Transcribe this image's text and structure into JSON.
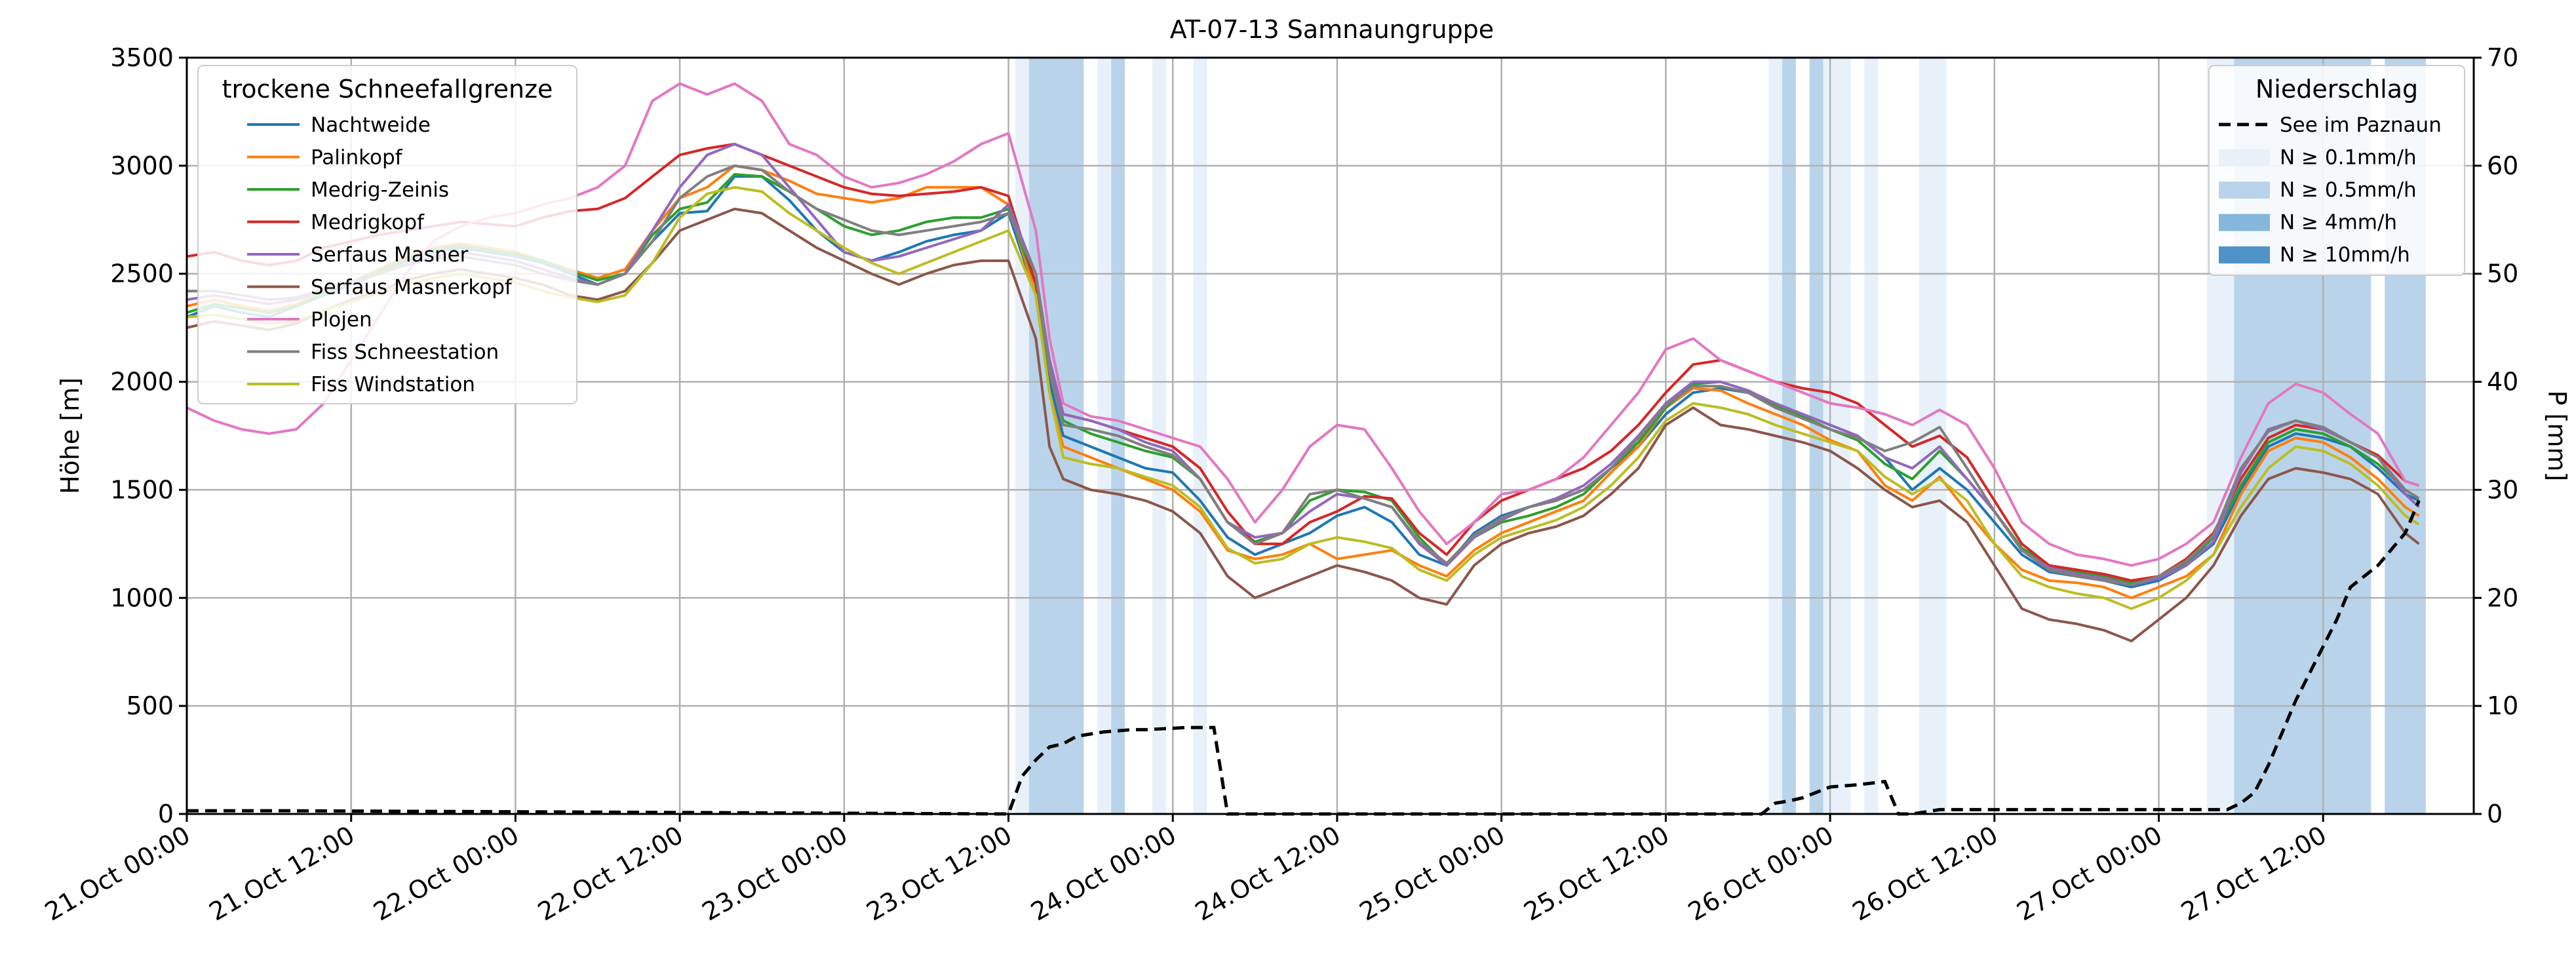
{
  "chart_data": {
    "type": "line",
    "title": "AT-07-13 Samnaungruppe",
    "xlabel": "",
    "ylabel": "Höhe [m]",
    "ylabel_right": "P [mm]",
    "ylim": [
      0,
      3500
    ],
    "ylim_right": [
      0,
      70
    ],
    "xlim": [
      "21.Oct 00:00",
      "27.Oct 23:00"
    ],
    "x_tick_labels": [
      "21.Oct 00:00",
      "21.Oct 12:00",
      "22.Oct 00:00",
      "22.Oct 12:00",
      "23.Oct 00:00",
      "23.Oct 12:00",
      "24.Oct 00:00",
      "24.Oct 12:00",
      "25.Oct 00:00",
      "25.Oct 12:00",
      "26.Oct 00:00",
      "26.Oct 12:00",
      "27.Oct 00:00",
      "27.Oct 12:00"
    ],
    "y_ticks": [
      0,
      500,
      1000,
      1500,
      2000,
      2500,
      3000,
      3500
    ],
    "y_ticks_right": [
      0,
      10,
      20,
      30,
      40,
      50,
      60,
      70
    ],
    "grid": true,
    "legend_left": {
      "title": "trockene Schneefallgrenze",
      "placement": "top-left"
    },
    "legend_right": {
      "title": "Niederschlag",
      "placement": "top-right",
      "entries": [
        {
          "label": "See im Paznaun",
          "style": "dashed",
          "color": "#000000"
        },
        {
          "label": "N ≥ 0.1mm/h",
          "color": "#e8f1fa"
        },
        {
          "label": "N ≥ 0.5mm/h",
          "color": "#b9d4ea"
        },
        {
          "label": "N ≥ 4mm/h",
          "color": "#85b6db"
        },
        {
          "label": "N ≥ 10mm/h",
          "color": "#4e93c8"
        }
      ]
    },
    "precip_bands": [
      {
        "start": 60.5,
        "end": 61.5,
        "level": 1
      },
      {
        "start": 61.5,
        "end": 65.5,
        "level": 2
      },
      {
        "start": 66.5,
        "end": 67.5,
        "level": 1
      },
      {
        "start": 67.5,
        "end": 68.5,
        "level": 2
      },
      {
        "start": 70.5,
        "end": 71.5,
        "level": 1
      },
      {
        "start": 73.5,
        "end": 74.5,
        "level": 1
      },
      {
        "start": 115.5,
        "end": 116.5,
        "level": 1
      },
      {
        "start": 116.5,
        "end": 117.5,
        "level": 2
      },
      {
        "start": 118.5,
        "end": 119.5,
        "level": 2
      },
      {
        "start": 119.5,
        "end": 121.5,
        "level": 1
      },
      {
        "start": 122.5,
        "end": 123.5,
        "level": 1
      },
      {
        "start": 126.5,
        "end": 128.5,
        "level": 1
      },
      {
        "start": 147.5,
        "end": 149.5,
        "level": 1
      },
      {
        "start": 149.5,
        "end": 159.5,
        "level": 2
      },
      {
        "start": 160.5,
        "end": 163.5,
        "level": 2
      }
    ],
    "precip_series": {
      "name": "See im Paznaun",
      "x": [
        0,
        7,
        60,
        61,
        62,
        63,
        64,
        65,
        66,
        67,
        68,
        69,
        70,
        73,
        75,
        76,
        77,
        115,
        116,
        117,
        118,
        119,
        120,
        122,
        124,
        125,
        126,
        128,
        132,
        149,
        150,
        151,
        152,
        153,
        154,
        155,
        156,
        157,
        158,
        159,
        160,
        161,
        162,
        163
      ],
      "values": [
        0.3,
        0.3,
        0,
        3.5,
        5,
        6.2,
        6.5,
        7.2,
        7.4,
        7.6,
        7.7,
        7.8,
        7.8,
        8,
        8,
        0,
        0,
        0,
        1,
        1.2,
        1.5,
        2,
        2.5,
        2.7,
        3,
        0,
        0,
        0.4,
        0.4,
        0.4,
        1,
        2,
        4.5,
        7.5,
        10.5,
        13,
        15.5,
        18,
        21,
        22,
        23,
        24.5,
        26,
        29
      ]
    },
    "x": [
      0,
      2,
      4,
      6,
      8,
      10,
      12,
      14,
      16,
      18,
      20,
      22,
      24,
      26,
      28,
      30,
      32,
      34,
      36,
      38,
      40,
      42,
      44,
      46,
      48,
      50,
      52,
      54,
      56,
      58,
      60,
      62,
      63,
      64,
      66,
      68,
      70,
      72,
      74,
      76,
      78,
      80,
      82,
      84,
      86,
      88,
      90,
      92,
      94,
      96,
      98,
      100,
      102,
      104,
      106,
      108,
      110,
      112,
      114,
      116,
      118,
      120,
      122,
      124,
      126,
      128,
      130,
      132,
      134,
      136,
      138,
      140,
      142,
      144,
      146,
      148,
      150,
      152,
      154,
      156,
      158,
      160,
      162,
      163
    ],
    "series": [
      {
        "name": "Nachtweide",
        "color": "#1f77b4",
        "values": [
          2300,
          2350,
          2320,
          2300,
          2350,
          2400,
          2450,
          2500,
          2560,
          2600,
          2620,
          2600,
          2580,
          2550,
          2500,
          2450,
          2500,
          2650,
          2780,
          2790,
          2950,
          2950,
          2840,
          2700,
          2600,
          2560,
          2600,
          2650,
          2680,
          2700,
          2780,
          2400,
          2000,
          1750,
          1700,
          1650,
          1600,
          1580,
          1450,
          1280,
          1200,
          1250,
          1300,
          1380,
          1420,
          1350,
          1200,
          1150,
          1300,
          1380,
          1420,
          1450,
          1500,
          1600,
          1700,
          1850,
          1950,
          1970,
          1950,
          1900,
          1850,
          1800,
          1750,
          1650,
          1500,
          1600,
          1500,
          1350,
          1200,
          1120,
          1100,
          1080,
          1050,
          1080,
          1150,
          1250,
          1500,
          1700,
          1760,
          1740,
          1700,
          1600,
          1480,
          1450
        ]
      },
      {
        "name": "Palinkopf",
        "color": "#ff7f0e",
        "values": [
          2350,
          2380,
          2350,
          2330,
          2360,
          2420,
          2460,
          2520,
          2580,
          2620,
          2640,
          2620,
          2600,
          2560,
          2520,
          2480,
          2520,
          2700,
          2850,
          2900,
          3000,
          2980,
          2930,
          2870,
          2850,
          2830,
          2850,
          2900,
          2900,
          2900,
          2820,
          2400,
          1950,
          1700,
          1650,
          1600,
          1550,
          1500,
          1400,
          1220,
          1180,
          1200,
          1250,
          1180,
          1200,
          1220,
          1150,
          1100,
          1220,
          1300,
          1350,
          1400,
          1450,
          1580,
          1700,
          1880,
          1970,
          1960,
          1900,
          1850,
          1800,
          1730,
          1680,
          1520,
          1450,
          1560,
          1400,
          1250,
          1130,
          1080,
          1070,
          1050,
          1000,
          1050,
          1100,
          1200,
          1480,
          1680,
          1740,
          1720,
          1650,
          1550,
          1420,
          1380
        ]
      },
      {
        "name": "Medrig-Zeinis",
        "color": "#2ca02c",
        "values": [
          2320,
          2360,
          2340,
          2320,
          2350,
          2410,
          2460,
          2510,
          2570,
          2610,
          2630,
          2610,
          2590,
          2560,
          2510,
          2470,
          2500,
          2680,
          2800,
          2830,
          2960,
          2950,
          2880,
          2800,
          2720,
          2680,
          2700,
          2740,
          2760,
          2760,
          2800,
          2450,
          2050,
          1820,
          1760,
          1720,
          1680,
          1650,
          1550,
          1350,
          1260,
          1300,
          1450,
          1500,
          1490,
          1450,
          1280,
          1150,
          1280,
          1350,
          1380,
          1420,
          1480,
          1600,
          1720,
          1880,
          1990,
          2000,
          1960,
          1890,
          1840,
          1780,
          1730,
          1620,
          1550,
          1680,
          1550,
          1400,
          1230,
          1150,
          1120,
          1100,
          1070,
          1100,
          1160,
          1280,
          1520,
          1720,
          1780,
          1760,
          1700,
          1620,
          1500,
          1460
        ]
      },
      {
        "name": "Medrigkopf",
        "color": "#d62728",
        "values": [
          2580,
          2600,
          2560,
          2540,
          2560,
          2620,
          2650,
          2680,
          2700,
          2720,
          2740,
          2730,
          2720,
          2760,
          2790,
          2800,
          2850,
          2950,
          3050,
          3080,
          3100,
          3050,
          3000,
          2950,
          2900,
          2870,
          2860,
          2870,
          2880,
          2900,
          2860,
          2450,
          2100,
          1850,
          1820,
          1780,
          1740,
          1700,
          1600,
          1400,
          1250,
          1250,
          1350,
          1400,
          1470,
          1460,
          1300,
          1200,
          1350,
          1450,
          1500,
          1550,
          1600,
          1680,
          1800,
          1950,
          2080,
          2100,
          2050,
          2000,
          1970,
          1950,
          1900,
          1800,
          1700,
          1750,
          1650,
          1450,
          1250,
          1150,
          1130,
          1110,
          1080,
          1100,
          1180,
          1300,
          1550,
          1740,
          1800,
          1780,
          1720,
          1660,
          1540,
          1520
        ]
      },
      {
        "name": "Serfaus Masner",
        "color": "#9467bd",
        "values": [
          2380,
          2400,
          2380,
          2360,
          2380,
          2420,
          2460,
          2500,
          2550,
          2580,
          2600,
          2580,
          2560,
          2520,
          2480,
          2450,
          2500,
          2700,
          2900,
          3050,
          3100,
          3050,
          2900,
          2750,
          2600,
          2560,
          2580,
          2620,
          2660,
          2700,
          2820,
          2500,
          2100,
          1850,
          1820,
          1780,
          1720,
          1680,
          1550,
          1350,
          1280,
          1300,
          1400,
          1480,
          1460,
          1420,
          1250,
          1150,
          1280,
          1360,
          1420,
          1460,
          1520,
          1620,
          1750,
          1900,
          2000,
          2000,
          1960,
          1900,
          1850,
          1800,
          1750,
          1650,
          1600,
          1700,
          1550,
          1400,
          1220,
          1140,
          1110,
          1090,
          1060,
          1090,
          1150,
          1260,
          1580,
          1780,
          1820,
          1780,
          1720,
          1650,
          1480,
          1420
        ]
      },
      {
        "name": "Serfaus Masnerkopf",
        "color": "#8c564b",
        "values": [
          2250,
          2280,
          2260,
          2240,
          2270,
          2330,
          2380,
          2420,
          2470,
          2500,
          2520,
          2500,
          2480,
          2450,
          2400,
          2380,
          2420,
          2550,
          2700,
          2750,
          2800,
          2780,
          2700,
          2620,
          2560,
          2500,
          2450,
          2500,
          2540,
          2560,
          2560,
          2200,
          1700,
          1550,
          1500,
          1480,
          1450,
          1400,
          1300,
          1100,
          1000,
          1050,
          1100,
          1150,
          1120,
          1080,
          1000,
          970,
          1150,
          1250,
          1300,
          1330,
          1380,
          1480,
          1600,
          1800,
          1880,
          1800,
          1780,
          1750,
          1720,
          1680,
          1600,
          1500,
          1420,
          1450,
          1350,
          1150,
          950,
          900,
          880,
          850,
          800,
          900,
          1000,
          1150,
          1380,
          1550,
          1600,
          1580,
          1550,
          1480,
          1300,
          1250
        ]
      },
      {
        "name": "Plojen",
        "color": "#e377c2",
        "values": [
          1880,
          1820,
          1780,
          1760,
          1780,
          1900,
          2100,
          2300,
          2500,
          2650,
          2720,
          2760,
          2780,
          2820,
          2850,
          2900,
          3000,
          3300,
          3380,
          3330,
          3380,
          3300,
          3100,
          3050,
          2950,
          2900,
          2920,
          2960,
          3020,
          3100,
          3150,
          2700,
          2200,
          1900,
          1840,
          1820,
          1780,
          1740,
          1700,
          1550,
          1350,
          1500,
          1700,
          1800,
          1780,
          1600,
          1400,
          1250,
          1350,
          1480,
          1500,
          1550,
          1650,
          1800,
          1950,
          2150,
          2200,
          2100,
          2050,
          2000,
          1950,
          1900,
          1880,
          1850,
          1800,
          1870,
          1800,
          1600,
          1350,
          1250,
          1200,
          1180,
          1150,
          1180,
          1250,
          1350,
          1650,
          1900,
          1990,
          1950,
          1850,
          1760,
          1540,
          1520
        ]
      },
      {
        "name": "Fiss Schneestation",
        "color": "#7f7f7f",
        "values": [
          2420,
          2420,
          2400,
          2380,
          2390,
          2430,
          2460,
          2500,
          2540,
          2570,
          2580,
          2560,
          2540,
          2500,
          2470,
          2450,
          2500,
          2650,
          2850,
          2950,
          3000,
          2980,
          2880,
          2800,
          2750,
          2700,
          2680,
          2700,
          2720,
          2740,
          2780,
          2500,
          2050,
          1800,
          1780,
          1750,
          1700,
          1660,
          1550,
          1350,
          1250,
          1300,
          1480,
          1500,
          1460,
          1420,
          1260,
          1160,
          1290,
          1370,
          1420,
          1450,
          1500,
          1600,
          1740,
          1890,
          1980,
          1980,
          1950,
          1880,
          1830,
          1780,
          1740,
          1680,
          1720,
          1790,
          1600,
          1400,
          1220,
          1130,
          1100,
          1080,
          1060,
          1100,
          1170,
          1290,
          1600,
          1770,
          1820,
          1790,
          1720,
          1650,
          1500,
          1460
        ]
      },
      {
        "name": "Fiss Windstation",
        "color": "#bcbd22",
        "values": [
          2300,
          2310,
          2290,
          2270,
          2280,
          2330,
          2370,
          2410,
          2450,
          2480,
          2500,
          2480,
          2460,
          2420,
          2390,
          2370,
          2400,
          2550,
          2760,
          2870,
          2900,
          2880,
          2780,
          2700,
          2620,
          2550,
          2500,
          2550,
          2600,
          2650,
          2700,
          2400,
          1950,
          1650,
          1620,
          1600,
          1560,
          1520,
          1420,
          1230,
          1160,
          1180,
          1250,
          1280,
          1260,
          1230,
          1130,
          1080,
          1200,
          1280,
          1320,
          1360,
          1420,
          1520,
          1650,
          1820,
          1900,
          1880,
          1850,
          1800,
          1760,
          1720,
          1680,
          1560,
          1480,
          1550,
          1450,
          1250,
          1100,
          1050,
          1020,
          1000,
          950,
          1000,
          1080,
          1200,
          1420,
          1600,
          1700,
          1680,
          1620,
          1520,
          1380,
          1340
        ]
      }
    ]
  }
}
